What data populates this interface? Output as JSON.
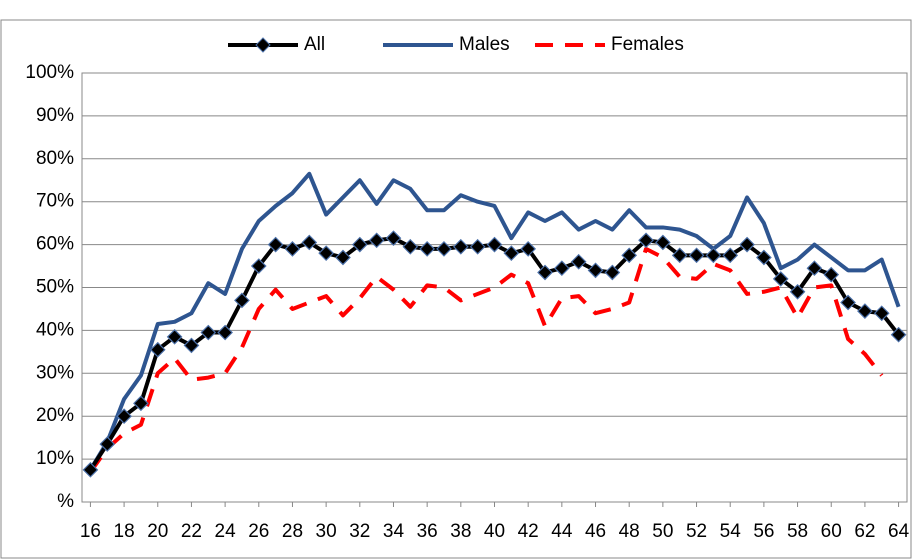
{
  "chart_data": {
    "type": "line",
    "x": [
      16,
      17,
      18,
      19,
      20,
      21,
      22,
      23,
      24,
      25,
      26,
      27,
      28,
      29,
      30,
      31,
      32,
      33,
      34,
      35,
      36,
      37,
      38,
      39,
      40,
      41,
      42,
      43,
      44,
      45,
      46,
      47,
      48,
      49,
      50,
      51,
      52,
      53,
      54,
      55,
      56,
      57,
      58,
      59,
      60,
      61,
      62,
      63,
      64
    ],
    "xlim": [
      15.5,
      64.5
    ],
    "xticks": [
      16,
      18,
      20,
      22,
      24,
      26,
      28,
      30,
      32,
      34,
      36,
      38,
      40,
      42,
      44,
      46,
      48,
      50,
      52,
      54,
      56,
      58,
      60,
      62,
      64
    ],
    "ylim": [
      0,
      100
    ],
    "yticks": [
      {
        "value": 0,
        "label": "%"
      },
      {
        "value": 10,
        "label": "10%"
      },
      {
        "value": 20,
        "label": "20%"
      },
      {
        "value": 30,
        "label": "30%"
      },
      {
        "value": 40,
        "label": "40%"
      },
      {
        "value": 50,
        "label": "50%"
      },
      {
        "value": 60,
        "label": "60%"
      },
      {
        "value": 70,
        "label": "70%"
      },
      {
        "value": 80,
        "label": "80%"
      },
      {
        "value": 90,
        "label": "90%"
      },
      {
        "value": 100,
        "label": "100%"
      }
    ],
    "grid": true,
    "legend": "top",
    "series": [
      {
        "name": "All",
        "color": "#000000",
        "marker": "diamond",
        "values": [
          7.5,
          13.5,
          20,
          23,
          35.5,
          38.5,
          36.5,
          39.5,
          39.5,
          47,
          55,
          60,
          59,
          60.5,
          58,
          57,
          60,
          61,
          61.5,
          59.5,
          59,
          59,
          59.5,
          59.5,
          60,
          58,
          59,
          53.5,
          54.5,
          56,
          54,
          53.5,
          57.5,
          61,
          60.5,
          57.5,
          57.5,
          57.5,
          57.5,
          60,
          57,
          52,
          49,
          54.5,
          53,
          46.5,
          44.5,
          44,
          39
        ]
      },
      {
        "name": "Males",
        "color": "#2e5590",
        "values": [
          7.5,
          14,
          24,
          29.5,
          41.5,
          42,
          44,
          51,
          48.5,
          59,
          65.5,
          69,
          72,
          76.5,
          67,
          71,
          75,
          69.5,
          75,
          73,
          68,
          68,
          71.5,
          70,
          69,
          61.5,
          67.5,
          65.5,
          67.5,
          63.5,
          65.5,
          63.5,
          68,
          64,
          64,
          63.5,
          62,
          59,
          62,
          71,
          65,
          54.5,
          56.5,
          60,
          57,
          54,
          54,
          56.5,
          45.5
        ]
      },
      {
        "name": "Females",
        "color": "#ff0000",
        "dashed": true,
        "values": [
          7,
          12.5,
          16,
          18,
          30,
          33.5,
          28.5,
          29,
          30,
          36,
          45,
          49.5,
          45,
          46.5,
          48,
          43.5,
          47.5,
          52.5,
          49.5,
          45.5,
          50.5,
          50,
          47,
          48.5,
          50,
          53,
          51,
          41,
          47.5,
          48,
          44,
          45,
          46.5,
          59,
          57,
          52.5,
          52,
          55.5,
          54,
          48.5,
          49,
          50,
          43,
          50,
          50.5,
          38,
          34.5,
          29.5,
          null
        ]
      }
    ]
  }
}
